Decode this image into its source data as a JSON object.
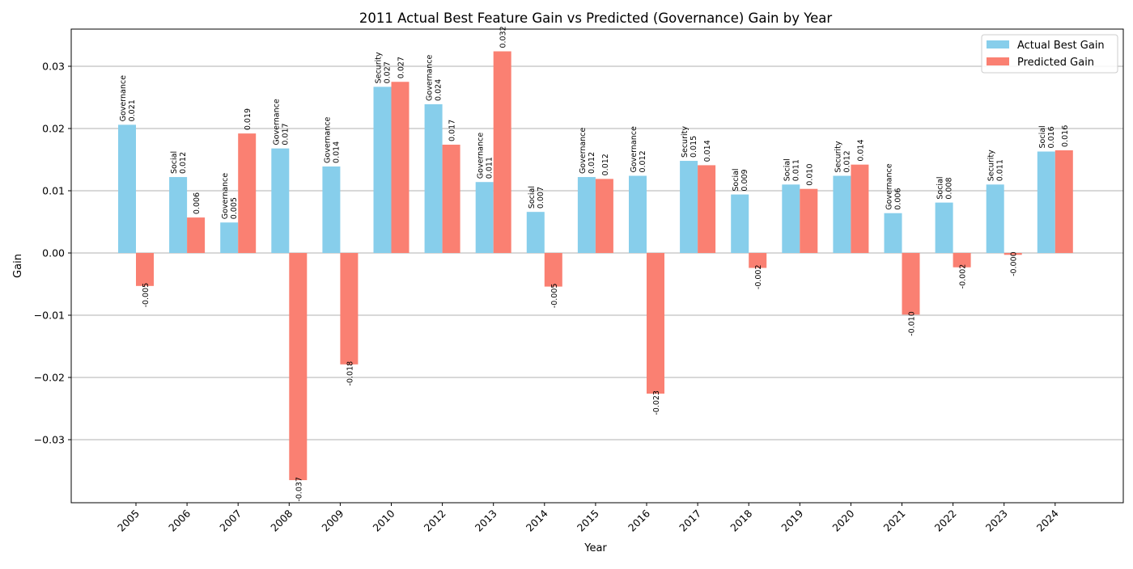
{
  "chart_data": {
    "type": "bar",
    "title": "2011 Actual Best Feature Gain vs Predicted (Governance) Gain by Year",
    "xlabel": "Year",
    "ylabel": "Gain",
    "ylim": [
      -0.04,
      0.036
    ],
    "yticks": [
      "0.03",
      "0.02",
      "0.01",
      "0.00",
      "−0.01",
      "−0.02",
      "−0.03"
    ],
    "ytick_values": [
      0.03,
      0.02,
      0.01,
      0.0,
      -0.01,
      -0.02,
      -0.03
    ],
    "grid": "horizontal",
    "legend_position": "top-right",
    "categories": [
      "2005",
      "2006",
      "2007",
      "2008",
      "2009",
      "2010",
      "2012",
      "2013",
      "2014",
      "2015",
      "2016",
      "2017",
      "2018",
      "2019",
      "2020",
      "2021",
      "2022",
      "2023",
      "2024"
    ],
    "series": [
      {
        "name": "Actual Best Gain",
        "color": "#87ceeb",
        "values": [
          0.0206,
          0.0122,
          0.0049,
          0.0168,
          0.0139,
          0.0267,
          0.0239,
          0.0114,
          0.0066,
          0.0122,
          0.0124,
          0.0148,
          0.0094,
          0.011,
          0.0124,
          0.0064,
          0.0081,
          0.011,
          0.0163
        ],
        "labels": [
          "0.021",
          "0.012",
          "0.005",
          "0.017",
          "0.014",
          "0.027",
          "0.024",
          "0.011",
          "0.007",
          "0.012",
          "0.012",
          "0.015",
          "0.009",
          "0.011",
          "0.012",
          "0.006",
          "0.008",
          "0.011",
          "0.016"
        ],
        "features": [
          "Governance",
          "Social",
          "Governance",
          "Governance",
          "Governance",
          "Security",
          "Governance",
          "Governance",
          "Social",
          "Governance",
          "Governance",
          "Security",
          "Social",
          "Social",
          "Security",
          "Governance",
          "Social",
          "Security",
          "Social"
        ]
      },
      {
        "name": "Predicted Gain",
        "color": "#fa8072",
        "values": [
          -0.0053,
          0.0057,
          0.0192,
          -0.0365,
          -0.0179,
          0.0275,
          0.0174,
          0.0324,
          -0.0054,
          0.0119,
          -0.0226,
          0.0141,
          -0.0024,
          0.0103,
          0.0142,
          -0.0099,
          -0.0023,
          -0.0003,
          0.0165
        ],
        "labels": [
          "-0.005",
          "0.006",
          "0.019",
          "-0.037",
          "-0.018",
          "0.027",
          "0.017",
          "0.032",
          "-0.005",
          "0.012",
          "-0.023",
          "0.014",
          "-0.002",
          "0.010",
          "0.014",
          "-0.010",
          "-0.002",
          "-0.000",
          "0.016"
        ]
      }
    ]
  }
}
